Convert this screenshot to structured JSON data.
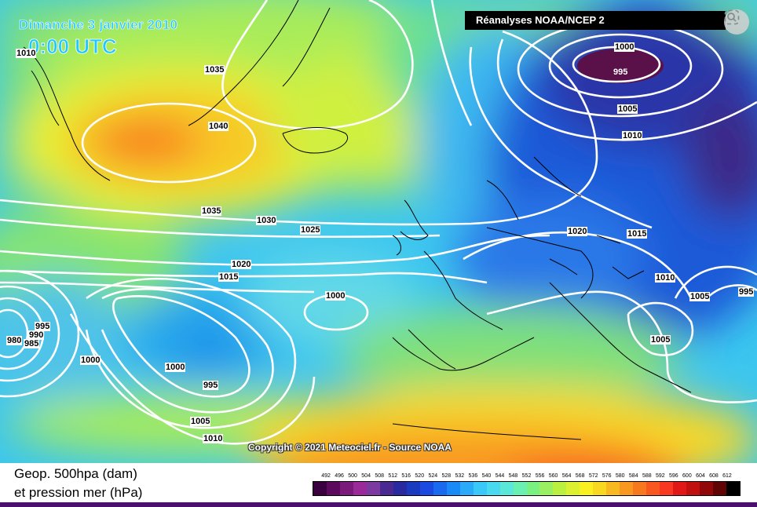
{
  "header": {
    "date": "Dimanche 3 janvier 2010",
    "time": "0:00 UTC",
    "source": "Réanalyses NOAA/NCEP 2"
  },
  "copyright": "Copyright © 2021 Meteociel.fr - Source NOAA",
  "legend": {
    "line1": "Geop. 500hpa (dam)",
    "line2": "et pression mer (hPa)",
    "scale_values": [
      "492",
      "496",
      "500",
      "504",
      "508",
      "512",
      "516",
      "520",
      "524",
      "528",
      "532",
      "536",
      "540",
      "544",
      "548",
      "552",
      "556",
      "560",
      "564",
      "568",
      "572",
      "576",
      "580",
      "584",
      "588",
      "592",
      "596",
      "600",
      "604",
      "608",
      "612"
    ],
    "scale_colors": [
      "#3a0040",
      "#5c0a5c",
      "#7a1a7a",
      "#9a2a9a",
      "#7a3aa0",
      "#4a2a90",
      "#2a2aa0",
      "#1a3ac0",
      "#1a4ae0",
      "#1a6af0",
      "#1a8af8",
      "#2aaaf8",
      "#3ac8f8",
      "#4adaf0",
      "#5ae8d8",
      "#6af0b0",
      "#7af080",
      "#9af060",
      "#baf040",
      "#daf030",
      "#f8f020",
      "#f8d820",
      "#f8b820",
      "#f89820",
      "#f87820",
      "#f85820",
      "#f83820",
      "#e01818",
      "#c01010",
      "#900808",
      "#600404",
      "#000000"
    ]
  },
  "isobar_labels": [
    "1000",
    "995",
    "1005",
    "1010",
    "1035",
    "1040",
    "1035",
    "1030",
    "1025",
    "1020",
    "1015",
    "1020",
    "1015",
    "1010",
    "1000",
    "1005",
    "995",
    "995",
    "990",
    "985",
    "980",
    "1000",
    "1000",
    "995",
    "1005",
    "1010",
    "1010",
    "1005"
  ],
  "icons": {
    "lens": "lens-search-icon"
  }
}
